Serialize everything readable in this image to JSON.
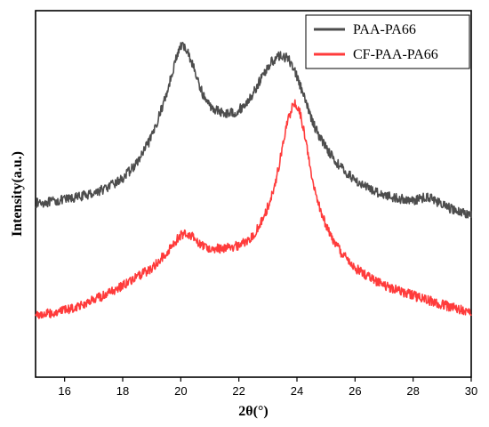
{
  "chart_data": {
    "type": "line",
    "title": "",
    "xlabel": "2θ(°)",
    "ylabel": "Intensity(a.u.)",
    "xlim": [
      15,
      30
    ],
    "ylim": [
      0,
      100
    ],
    "x_ticks": [
      16,
      18,
      20,
      22,
      24,
      26,
      28,
      30
    ],
    "y_ticks_shown": false,
    "grid": false,
    "legend_position": "top-right",
    "x": [
      15.0,
      15.5,
      16.0,
      16.5,
      17.0,
      17.5,
      18.0,
      18.5,
      19.0,
      19.5,
      19.8,
      20.0,
      20.2,
      20.4,
      20.6,
      20.8,
      21.0,
      21.3,
      21.6,
      21.9,
      22.2,
      22.5,
      22.8,
      23.1,
      23.3,
      23.5,
      23.7,
      23.9,
      24.1,
      24.3,
      24.5,
      24.7,
      25.0,
      25.3,
      25.6,
      26.0,
      26.5,
      27.0,
      27.5,
      28.0,
      28.3,
      28.5,
      28.7,
      29.0,
      29.5,
      30.0
    ],
    "series": [
      {
        "name": "PAA-PA66",
        "color": "#4d4d4d",
        "values": [
          47.5,
          47.8,
          48.4,
          49.2,
          50.3,
          51.8,
          54.2,
          58.5,
          65.5,
          77.0,
          86.0,
          90.5,
          89.5,
          85.5,
          80.5,
          76.5,
          74.0,
          72.5,
          72.0,
          72.3,
          74.2,
          77.5,
          82.0,
          85.8,
          87.3,
          87.7,
          86.8,
          84.3,
          79.8,
          75.0,
          70.6,
          66.8,
          62.8,
          59.2,
          56.5,
          53.8,
          51.3,
          49.8,
          48.7,
          48.2,
          48.8,
          49.3,
          48.6,
          47.0,
          45.3,
          44.4
        ]
      },
      {
        "name": "CF-PAA-PA66",
        "color": "#ff3b3b",
        "values": [
          17.0,
          17.4,
          18.2,
          19.5,
          21.0,
          22.8,
          25.0,
          27.3,
          29.8,
          33.8,
          37.0,
          38.8,
          39.3,
          38.6,
          36.8,
          35.6,
          35.2,
          35.1,
          35.3,
          35.7,
          36.8,
          38.8,
          42.6,
          48.5,
          54.5,
          62.5,
          70.5,
          75.0,
          72.5,
          64.5,
          55.5,
          48.0,
          41.5,
          36.5,
          33.2,
          29.8,
          27.2,
          25.2,
          23.6,
          22.3,
          21.5,
          21.0,
          20.5,
          19.8,
          18.7,
          17.8
        ]
      }
    ]
  }
}
